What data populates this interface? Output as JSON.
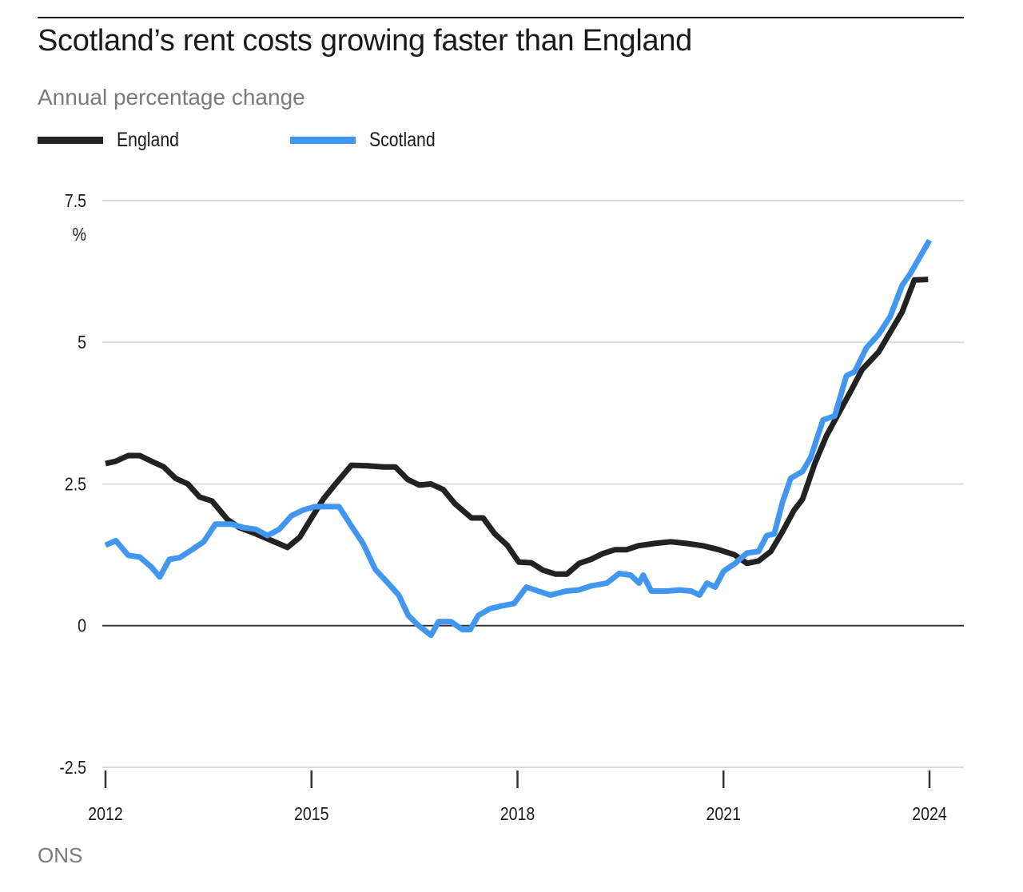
{
  "header": {
    "title": "Scotland’s rent costs growing faster than England",
    "subtitle": "Annual percentage change"
  },
  "legend": [
    {
      "name": "England",
      "color": "#222222"
    },
    {
      "name": "Scotland",
      "color": "#4196f0"
    }
  ],
  "source": "ONS",
  "chart_data": {
    "type": "line",
    "title": "Scotland’s rent costs growing faster than England",
    "subtitle": "Annual percentage change",
    "xlabel": "",
    "ylabel": "%",
    "y_unit_label": "%",
    "xlim": [
      2012.0,
      2024.0
    ],
    "ylim": [
      -2.5,
      7.5
    ],
    "yticks": [
      -2.5,
      0,
      2.5,
      5,
      7.5
    ],
    "ytick_labels": [
      "-2.5",
      "0",
      "2.5",
      "5",
      "7.5"
    ],
    "xticks": [
      2012,
      2015,
      2018,
      2021,
      2024
    ],
    "xtick_labels": [
      "2012",
      "2015",
      "2018",
      "2021",
      "2024"
    ],
    "grid": "horizontal",
    "legend_position": "top-left",
    "source": "ONS",
    "series": [
      {
        "name": "England",
        "color": "#222222",
        "x": [
          2012.0,
          2012.15,
          2012.33,
          2012.5,
          2012.67,
          2012.85,
          2013.02,
          2013.2,
          2013.37,
          2013.55,
          2013.78,
          2013.95,
          2014.19,
          2014.42,
          2014.65,
          2014.83,
          2015.0,
          2015.17,
          2015.35,
          2015.58,
          2015.81,
          2016.05,
          2016.22,
          2016.4,
          2016.57,
          2016.74,
          2016.92,
          2017.09,
          2017.33,
          2017.5,
          2017.67,
          2017.85,
          2018.02,
          2018.2,
          2018.37,
          2018.55,
          2018.72,
          2018.9,
          2019.07,
          2019.24,
          2019.42,
          2019.59,
          2019.76,
          2020.0,
          2020.23,
          2020.46,
          2020.7,
          2020.93,
          2021.16,
          2021.34,
          2021.51,
          2021.69,
          2021.86,
          2022.03,
          2022.15,
          2022.33,
          2022.5,
          2022.67,
          2022.85,
          2023.02,
          2023.26,
          2023.43,
          2023.6,
          2023.78,
          2023.98
        ],
        "values": [
          2.86,
          2.9,
          3.0,
          3.0,
          2.9,
          2.8,
          2.6,
          2.5,
          2.27,
          2.2,
          1.87,
          1.73,
          1.62,
          1.5,
          1.38,
          1.56,
          1.9,
          2.23,
          2.5,
          2.83,
          2.82,
          2.8,
          2.8,
          2.58,
          2.48,
          2.5,
          2.4,
          2.15,
          1.9,
          1.9,
          1.62,
          1.42,
          1.12,
          1.11,
          0.98,
          0.91,
          0.91,
          1.1,
          1.17,
          1.27,
          1.34,
          1.34,
          1.41,
          1.45,
          1.48,
          1.45,
          1.41,
          1.34,
          1.25,
          1.1,
          1.14,
          1.31,
          1.66,
          2.04,
          2.23,
          2.86,
          3.35,
          3.73,
          4.13,
          4.52,
          4.83,
          5.18,
          5.53,
          6.1,
          6.11
        ]
      },
      {
        "name": "Scotland",
        "color": "#4196f0",
        "x": [
          2012.0,
          2012.15,
          2012.33,
          2012.5,
          2012.67,
          2012.79,
          2012.93,
          2013.08,
          2013.26,
          2013.43,
          2013.6,
          2013.84,
          2014.01,
          2014.19,
          2014.36,
          2014.53,
          2014.71,
          2014.88,
          2015.05,
          2015.23,
          2015.4,
          2015.58,
          2015.75,
          2015.93,
          2016.1,
          2016.27,
          2016.41,
          2016.56,
          2016.74,
          2016.85,
          2017.03,
          2017.2,
          2017.31,
          2017.43,
          2017.6,
          2017.78,
          2017.95,
          2018.13,
          2018.3,
          2018.48,
          2018.71,
          2018.89,
          2019.07,
          2019.3,
          2019.48,
          2019.65,
          2019.77,
          2019.83,
          2019.95,
          2020.18,
          2020.36,
          2020.53,
          2020.65,
          2020.76,
          2020.88,
          2021.0,
          2021.17,
          2021.34,
          2021.51,
          2021.63,
          2021.74,
          2021.86,
          2021.98,
          2022.15,
          2022.27,
          2022.45,
          2022.62,
          2022.79,
          2022.91,
          2023.08,
          2023.26,
          2023.43,
          2023.6,
          2023.72,
          2024.0
        ],
        "values": [
          1.42,
          1.5,
          1.24,
          1.21,
          1.03,
          0.86,
          1.17,
          1.2,
          1.34,
          1.48,
          1.79,
          1.79,
          1.73,
          1.7,
          1.59,
          1.7,
          1.94,
          2.04,
          2.1,
          2.1,
          2.1,
          1.76,
          1.45,
          0.99,
          0.77,
          0.54,
          0.18,
          0.0,
          -0.17,
          0.07,
          0.07,
          -0.07,
          -0.07,
          0.18,
          0.3,
          0.35,
          0.39,
          0.68,
          0.61,
          0.54,
          0.61,
          0.63,
          0.7,
          0.75,
          0.92,
          0.89,
          0.75,
          0.89,
          0.61,
          0.61,
          0.63,
          0.61,
          0.54,
          0.75,
          0.68,
          0.96,
          1.1,
          1.28,
          1.31,
          1.59,
          1.62,
          2.18,
          2.6,
          2.72,
          2.97,
          3.63,
          3.7,
          4.41,
          4.48,
          4.9,
          5.14,
          5.46,
          6.0,
          6.21,
          6.8
        ]
      }
    ]
  }
}
